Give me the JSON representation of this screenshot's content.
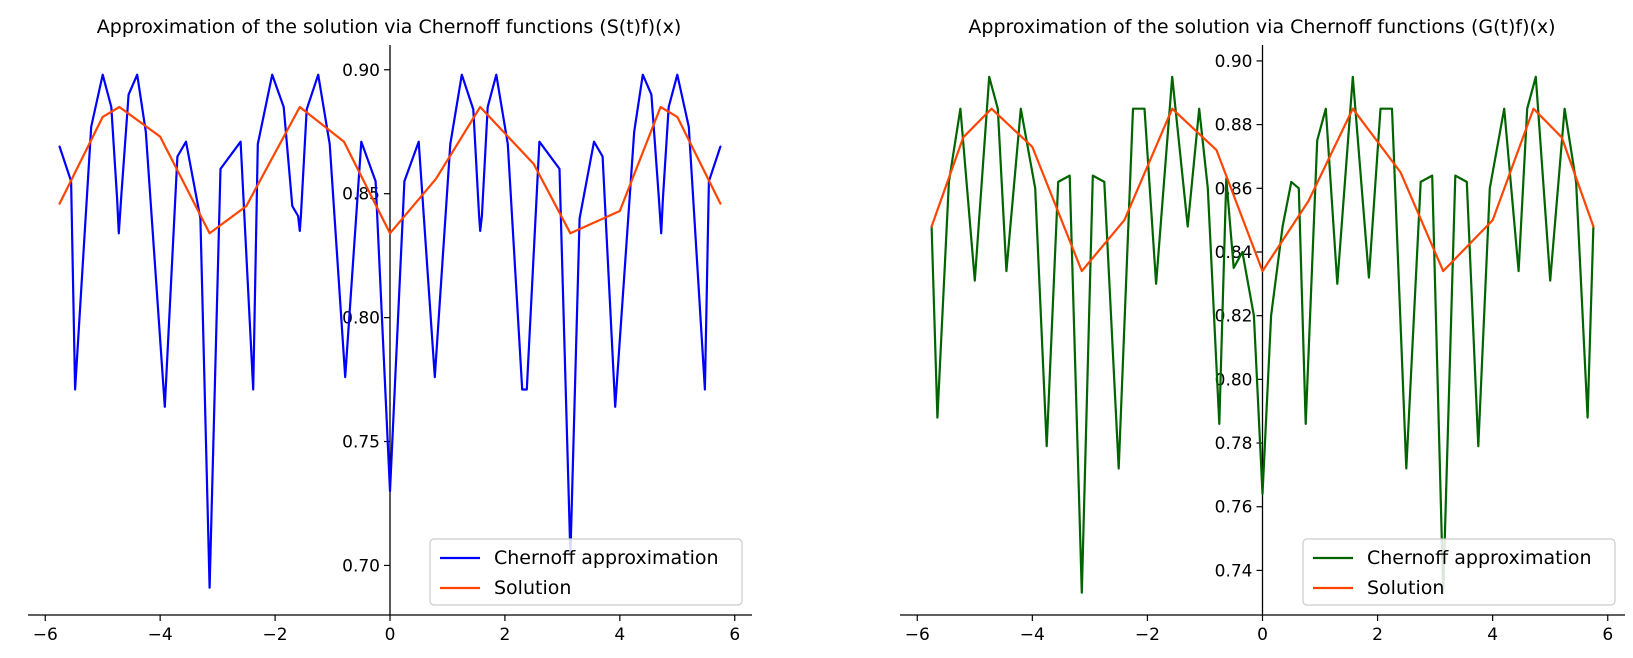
{
  "chart_data": [
    {
      "type": "line",
      "title": "Approximation of the solution via Chernoff functions (S(t)f)(x)",
      "xlabel": "",
      "ylabel": "",
      "xlim": [
        -6.3,
        6.3
      ],
      "ylim": [
        0.68,
        0.91
      ],
      "xticks": [
        -6,
        -4,
        -2,
        0,
        2,
        4,
        6
      ],
      "xtick_labels": [
        "−6",
        "−4",
        "−2",
        "0",
        "2",
        "4",
        "6"
      ],
      "yticks": [
        0.7,
        0.75,
        0.8,
        0.85,
        0.9
      ],
      "ytick_labels": [
        "0.70",
        "0.75",
        "0.80",
        "0.85",
        "0.90"
      ],
      "spines": "centered at zero",
      "legend": "lower-right",
      "series": [
        {
          "name": "Chernoff approximation",
          "color": "#0000ff",
          "x": [
            -5.75,
            -5.55,
            -5.48,
            -5.2,
            -5.0,
            -4.85,
            -4.75,
            -4.72,
            -4.68,
            -4.55,
            -4.4,
            -4.25,
            -3.92,
            -3.7,
            -3.55,
            -3.3,
            -3.14,
            -2.95,
            -2.6,
            -2.38,
            -2.3,
            -2.05,
            -1.85,
            -1.7,
            -1.6,
            -1.57,
            -1.55,
            -1.45,
            -1.25,
            -1.05,
            -0.78,
            -0.5,
            -0.25,
            0.0,
            0.25,
            0.5,
            0.78,
            1.05,
            1.25,
            1.45,
            1.55,
            1.57,
            1.6,
            1.7,
            1.85,
            2.05,
            2.3,
            2.38,
            2.6,
            2.95,
            3.14,
            3.3,
            3.55,
            3.7,
            3.92,
            4.25,
            4.4,
            4.55,
            4.68,
            4.72,
            4.75,
            4.85,
            5.0,
            5.2,
            5.48,
            5.55,
            5.75
          ],
          "y": [
            0.869,
            0.855,
            0.771,
            0.877,
            0.898,
            0.885,
            0.848,
            0.834,
            0.848,
            0.89,
            0.898,
            0.875,
            0.764,
            0.865,
            0.871,
            0.84,
            0.691,
            0.86,
            0.871,
            0.771,
            0.87,
            0.898,
            0.885,
            0.845,
            0.841,
            0.835,
            0.841,
            0.884,
            0.898,
            0.87,
            0.776,
            0.871,
            0.855,
            0.73,
            0.855,
            0.871,
            0.776,
            0.87,
            0.898,
            0.884,
            0.841,
            0.835,
            0.841,
            0.885,
            0.898,
            0.87,
            0.771,
            0.771,
            0.871,
            0.86,
            0.704,
            0.84,
            0.871,
            0.865,
            0.764,
            0.875,
            0.898,
            0.89,
            0.848,
            0.834,
            0.848,
            0.885,
            0.898,
            0.877,
            0.771,
            0.855,
            0.869
          ]
        },
        {
          "name": "Solution",
          "color": "#ff4500",
          "x": [
            -5.75,
            -5.0,
            -4.71,
            -4.0,
            -3.14,
            -2.5,
            -1.57,
            -0.8,
            0.0,
            0.8,
            1.57,
            2.5,
            3.14,
            4.0,
            4.71,
            5.0,
            5.75
          ],
          "y": [
            0.846,
            0.881,
            0.885,
            0.873,
            0.834,
            0.845,
            0.885,
            0.871,
            0.834,
            0.856,
            0.885,
            0.862,
            0.834,
            0.843,
            0.885,
            0.881,
            0.846
          ]
        }
      ]
    },
    {
      "type": "line",
      "title": "Approximation of the solution via Chernoff functions (G(t)f)(x)",
      "xlabel": "",
      "ylabel": "",
      "xlim": [
        -6.3,
        6.3
      ],
      "ylim": [
        0.726,
        0.905
      ],
      "xticks": [
        -6,
        -4,
        -2,
        0,
        2,
        4,
        6
      ],
      "xtick_labels": [
        "−6",
        "−4",
        "−2",
        "0",
        "2",
        "4",
        "6"
      ],
      "yticks": [
        0.74,
        0.76,
        0.78,
        0.8,
        0.82,
        0.84,
        0.86,
        0.88,
        0.9
      ],
      "ytick_labels": [
        "0.74",
        "0.76",
        "0.78",
        "0.80",
        "0.82",
        "0.84",
        "0.86",
        "0.88",
        "0.90"
      ],
      "spines": "centered at zero",
      "legend": "lower-right",
      "series": [
        {
          "name": "Chernoff approximation",
          "color": "#006400",
          "x": [
            -5.75,
            -5.65,
            -5.45,
            -5.25,
            -5.0,
            -4.75,
            -4.6,
            -4.45,
            -4.2,
            -3.95,
            -3.75,
            -3.55,
            -3.35,
            -3.14,
            -2.95,
            -2.75,
            -2.5,
            -2.25,
            -2.05,
            -1.85,
            -1.57,
            -1.3,
            -1.1,
            -0.95,
            -0.75,
            -0.63,
            -0.5,
            -0.35,
            -0.15,
            0.0,
            0.15,
            0.35,
            0.5,
            0.63,
            0.75,
            0.95,
            1.1,
            1.3,
            1.57,
            1.85,
            2.05,
            2.25,
            2.5,
            2.75,
            2.95,
            3.14,
            3.35,
            3.55,
            3.75,
            3.95,
            4.2,
            4.45,
            4.6,
            4.75,
            5.0,
            5.25,
            5.45,
            5.65,
            5.75
          ],
          "y": [
            0.848,
            0.788,
            0.862,
            0.885,
            0.831,
            0.895,
            0.885,
            0.834,
            0.885,
            0.86,
            0.779,
            0.862,
            0.864,
            0.733,
            0.864,
            0.862,
            0.772,
            0.885,
            0.885,
            0.83,
            0.895,
            0.848,
            0.885,
            0.86,
            0.786,
            0.863,
            0.835,
            0.84,
            0.82,
            0.764,
            0.82,
            0.848,
            0.862,
            0.86,
            0.786,
            0.875,
            0.885,
            0.83,
            0.895,
            0.832,
            0.885,
            0.885,
            0.772,
            0.862,
            0.864,
            0.733,
            0.864,
            0.862,
            0.779,
            0.86,
            0.885,
            0.834,
            0.885,
            0.895,
            0.831,
            0.885,
            0.862,
            0.788,
            0.848
          ]
        },
        {
          "name": "Solution",
          "color": "#ff4500",
          "x": [
            -5.75,
            -5.2,
            -4.71,
            -4.0,
            -3.14,
            -2.4,
            -1.57,
            -0.8,
            0.0,
            0.8,
            1.57,
            2.4,
            3.14,
            4.0,
            4.71,
            5.2,
            5.75
          ],
          "y": [
            0.848,
            0.876,
            0.885,
            0.873,
            0.834,
            0.85,
            0.885,
            0.872,
            0.834,
            0.856,
            0.885,
            0.865,
            0.834,
            0.85,
            0.885,
            0.876,
            0.848
          ]
        }
      ]
    }
  ]
}
